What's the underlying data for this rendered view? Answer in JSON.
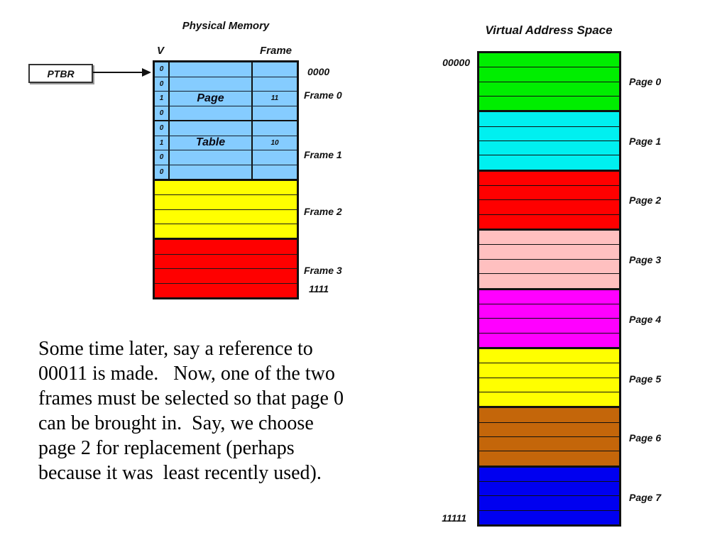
{
  "physical": {
    "title": "Physical Memory",
    "col_v": "V",
    "col_frame": "Frame",
    "ptbr_label": "PTBR",
    "addr_top": "0000",
    "addr_bottom": "1111",
    "page_table_color": "#85CCFF",
    "page_table_rows": [
      {
        "v": "0",
        "text": "",
        "frame": ""
      },
      {
        "v": "0",
        "text": "",
        "frame": ""
      },
      {
        "v": "1",
        "text": "Page",
        "frame": "11"
      },
      {
        "v": "0",
        "text": "",
        "frame": ""
      },
      {
        "v": "0",
        "text": "",
        "frame": ""
      },
      {
        "v": "1",
        "text": "Table",
        "frame": "10"
      },
      {
        "v": "0",
        "text": "",
        "frame": ""
      },
      {
        "v": "0",
        "text": "",
        "frame": ""
      }
    ],
    "frame_labels": [
      "Frame 0",
      "Frame 1",
      "Frame 2",
      "Frame 3"
    ],
    "frame2_color": "#FFFF00",
    "frame3_color": "#FF0000"
  },
  "virtual": {
    "title": "Virtual Address Space",
    "addr_top": "00000",
    "addr_bottom": "11111",
    "pages": [
      {
        "label": "Page 0",
        "color": "#00EE00"
      },
      {
        "label": "Page 1",
        "color": "#00F0F0"
      },
      {
        "label": "Page 2",
        "color": "#FF0000"
      },
      {
        "label": "Page 3",
        "color": "#FFC0C0"
      },
      {
        "label": "Page 4",
        "color": "#FF00FF"
      },
      {
        "label": "Page 5",
        "color": "#FFFF00"
      },
      {
        "label": "Page 6",
        "color": "#C4660A"
      },
      {
        "label": "Page 7",
        "color": "#0000F0"
      }
    ]
  },
  "caption": {
    "text": "Some time later, say a reference to\n00011 is made.   Now, one of the two\nframes must be selected so that page 0\ncan be brought in.  Say, we choose\npage 2 for replacement (perhaps\nbecause it was  least recently used)."
  }
}
